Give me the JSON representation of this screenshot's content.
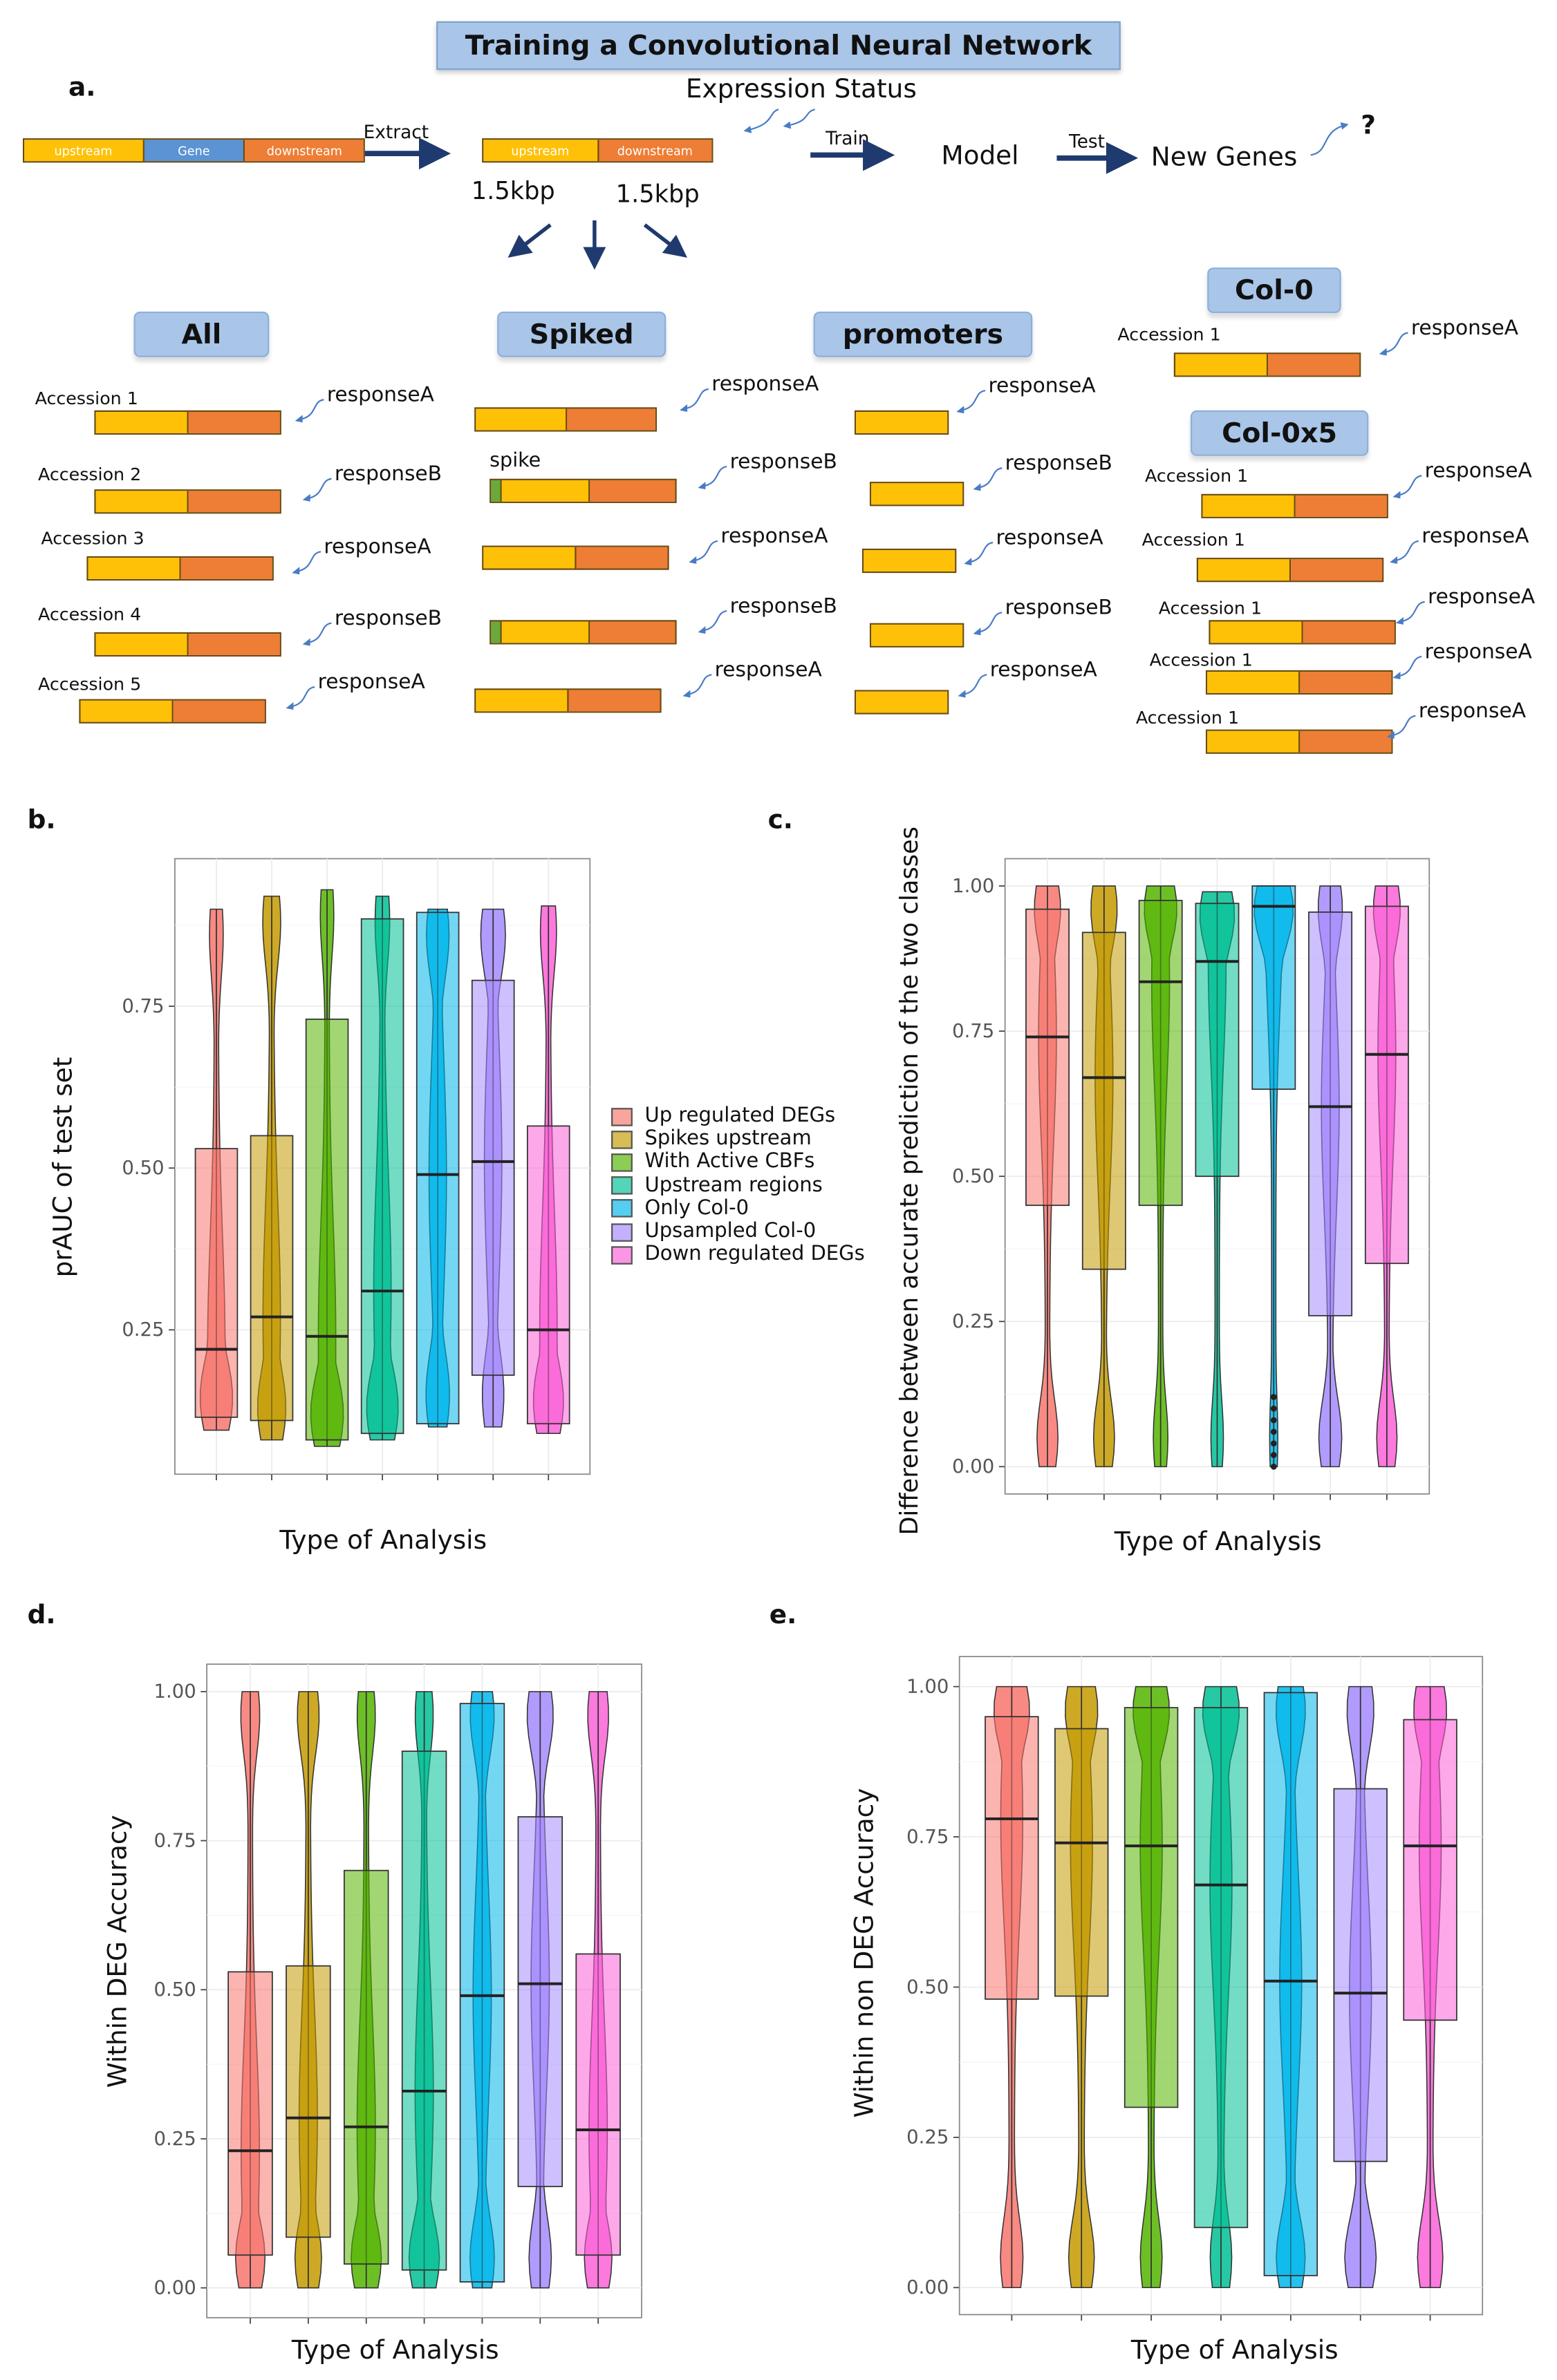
{
  "panel_a": {
    "letter": "a.",
    "title": "Training a Convolutional Neural Network",
    "expression_status": "Expression Status",
    "full_bar": {
      "upstream": "upstream",
      "gene": "Gene",
      "downstream": "downstream"
    },
    "extract": "Extract",
    "cut_bar": {
      "upstream": "upstream",
      "downstream": "downstream"
    },
    "len_up": "1.5kbp",
    "len_down": "1.5kbp",
    "train": "Train",
    "model": "Model",
    "test": "Test",
    "new_genes": "New Genes",
    "question": "?",
    "spike_label": "spike",
    "groups": {
      "all": {
        "label": "All",
        "rows": [
          {
            "accession": "Accession 1",
            "response": "responseA"
          },
          {
            "accession": "Accession 2",
            "response": "responseB"
          },
          {
            "accession": "Accession 3",
            "response": "responseA"
          },
          {
            "accession": "Accession 4",
            "response": "responseB"
          },
          {
            "accession": "Accession 5",
            "response": "responseA"
          }
        ]
      },
      "spiked": {
        "label": "Spiked",
        "rows": [
          {
            "response": "responseA",
            "spike": false
          },
          {
            "response": "responseB",
            "spike": true
          },
          {
            "response": "responseA",
            "spike": false
          },
          {
            "response": "responseB",
            "spike": true
          },
          {
            "response": "responseA",
            "spike": false
          }
        ]
      },
      "promoters": {
        "label": "promoters",
        "rows": [
          {
            "response": "responseA"
          },
          {
            "response": "responseB"
          },
          {
            "response": "responseA"
          },
          {
            "response": "responseB"
          },
          {
            "response": "responseA"
          }
        ]
      },
      "col0": {
        "label": "Col-0",
        "rows": [
          {
            "accession": "Accession 1",
            "response": "responseA"
          }
        ]
      },
      "col0x5": {
        "label": "Col-0x5",
        "rows": [
          {
            "accession": "Accession 1",
            "response": "responseA"
          },
          {
            "accession": "Accession 1",
            "response": "responseA"
          },
          {
            "accession": "Accession 1",
            "response": "responseA"
          },
          {
            "accession": "Accession 1",
            "response": "responseA"
          },
          {
            "accession": "Accession 1",
            "response": "responseA"
          }
        ]
      }
    },
    "colors": {
      "upstream": "#fec107",
      "gene": "#5b93d3",
      "downstream": "#ee7d35",
      "spike": "#6aaa3a",
      "label_box": "#a9c5e8"
    }
  },
  "legend": {
    "entries": [
      "Up regulated DEGs",
      "Spikes upstream",
      "With Active CBFs",
      "Upstream regions",
      "Only Col-0",
      "Upsampled Col-0",
      "Down regulated DEGs"
    ],
    "placement": "right of panel b"
  },
  "colors": [
    "#F8766D",
    "#C49A00",
    "#53B400",
    "#00C094",
    "#00B6EB",
    "#A58AFF",
    "#FB61D7"
  ],
  "chart_data": [
    {
      "panel": "b.",
      "type": "box",
      "overlay": "violin",
      "grid": true,
      "xlabel": "Type of Analysis",
      "ylabel": "prAUC of test set",
      "ylim": [
        0.027,
        0.978
      ],
      "yticks": [
        "0.25",
        "0.50",
        "0.75"
      ],
      "categories": [
        "Up regulated DEGs",
        "Spikes upstream",
        "With Active CBFs",
        "Upstream regions",
        "Only Col-0",
        "Upsampled Col-0",
        "Down regulated DEGs"
      ],
      "series": [
        {
          "min": 0.095,
          "q1": 0.115,
          "median": 0.22,
          "q3": 0.53,
          "max": 0.9
        },
        {
          "min": 0.08,
          "q1": 0.11,
          "median": 0.27,
          "q3": 0.55,
          "max": 0.92
        },
        {
          "min": 0.07,
          "q1": 0.08,
          "median": 0.24,
          "q3": 0.73,
          "max": 0.93
        },
        {
          "min": 0.08,
          "q1": 0.09,
          "median": 0.31,
          "q3": 0.885,
          "max": 0.92
        },
        {
          "min": 0.1,
          "q1": 0.105,
          "median": 0.49,
          "q3": 0.895,
          "max": 0.9
        },
        {
          "min": 0.1,
          "q1": 0.18,
          "median": 0.51,
          "q3": 0.79,
          "max": 0.9
        },
        {
          "min": 0.09,
          "q1": 0.105,
          "median": 0.25,
          "q3": 0.565,
          "max": 0.905
        }
      ]
    },
    {
      "panel": "c.",
      "type": "box",
      "overlay": "violin",
      "grid": true,
      "xlabel": "Type of Analysis",
      "ylabel": "Difference between accurate prediction of the two classes",
      "ylim": [
        -0.047,
        1.047
      ],
      "yticks": [
        "0.00",
        "0.25",
        "0.50",
        "0.75",
        "1.00"
      ],
      "series": [
        {
          "min": 0,
          "q1": 0.45,
          "median": 0.74,
          "q3": 0.96,
          "max": 1
        },
        {
          "min": 0,
          "q1": 0.34,
          "median": 0.67,
          "q3": 0.92,
          "max": 1
        },
        {
          "min": 0,
          "q1": 0.45,
          "median": 0.835,
          "q3": 0.975,
          "max": 1
        },
        {
          "min": 0,
          "q1": 0.5,
          "median": 0.87,
          "q3": 0.97,
          "max": 0.99
        },
        {
          "min": 0,
          "q1": 0.65,
          "median": 0.965,
          "q3": 1.0,
          "max": 1,
          "outliers": [
            0,
            0.02,
            0.04,
            0.06,
            0.08,
            0.1,
            0.12
          ]
        },
        {
          "min": 0,
          "q1": 0.26,
          "median": 0.62,
          "q3": 0.955,
          "max": 1
        },
        {
          "min": 0,
          "q1": 0.35,
          "median": 0.71,
          "q3": 0.965,
          "max": 1
        }
      ]
    },
    {
      "panel": "d.",
      "type": "box",
      "overlay": "violin",
      "grid": true,
      "xlabel": "Type of Analysis",
      "ylabel": "Within DEG Accuracy",
      "ylim": [
        -0.05,
        1.046
      ],
      "yticks": [
        "0.00",
        "0.25",
        "0.50",
        "0.75",
        "1.00"
      ],
      "series": [
        {
          "min": 0,
          "q1": 0.055,
          "median": 0.23,
          "q3": 0.53,
          "max": 1
        },
        {
          "min": 0,
          "q1": 0.085,
          "median": 0.285,
          "q3": 0.54,
          "max": 1
        },
        {
          "min": 0,
          "q1": 0.04,
          "median": 0.27,
          "q3": 0.7,
          "max": 1
        },
        {
          "min": 0,
          "q1": 0.03,
          "median": 0.33,
          "q3": 0.9,
          "max": 1
        },
        {
          "min": 0,
          "q1": 0.01,
          "median": 0.49,
          "q3": 0.98,
          "max": 1
        },
        {
          "min": 0,
          "q1": 0.17,
          "median": 0.51,
          "q3": 0.79,
          "max": 1
        },
        {
          "min": 0,
          "q1": 0.055,
          "median": 0.265,
          "q3": 0.56,
          "max": 1
        }
      ]
    },
    {
      "panel": "e.",
      "type": "box",
      "overlay": "violin",
      "grid": true,
      "xlabel": "Type of Analysis",
      "ylabel": "Within non DEG Accuracy",
      "ylim": [
        -0.045,
        1.05
      ],
      "yticks": [
        "0.00",
        "0.25",
        "0.50",
        "0.75",
        "1.00"
      ],
      "series": [
        {
          "min": 0,
          "q1": 0.48,
          "median": 0.78,
          "q3": 0.95,
          "max": 1
        },
        {
          "min": 0,
          "q1": 0.485,
          "median": 0.74,
          "q3": 0.93,
          "max": 1
        },
        {
          "min": 0,
          "q1": 0.3,
          "median": 0.735,
          "q3": 0.965,
          "max": 1
        },
        {
          "min": 0,
          "q1": 0.1,
          "median": 0.67,
          "q3": 0.965,
          "max": 1
        },
        {
          "min": 0,
          "q1": 0.02,
          "median": 0.51,
          "q3": 0.99,
          "max": 1
        },
        {
          "min": 0,
          "q1": 0.21,
          "median": 0.49,
          "q3": 0.83,
          "max": 1
        },
        {
          "min": 0,
          "q1": 0.445,
          "median": 0.735,
          "q3": 0.945,
          "max": 1
        }
      ]
    }
  ]
}
